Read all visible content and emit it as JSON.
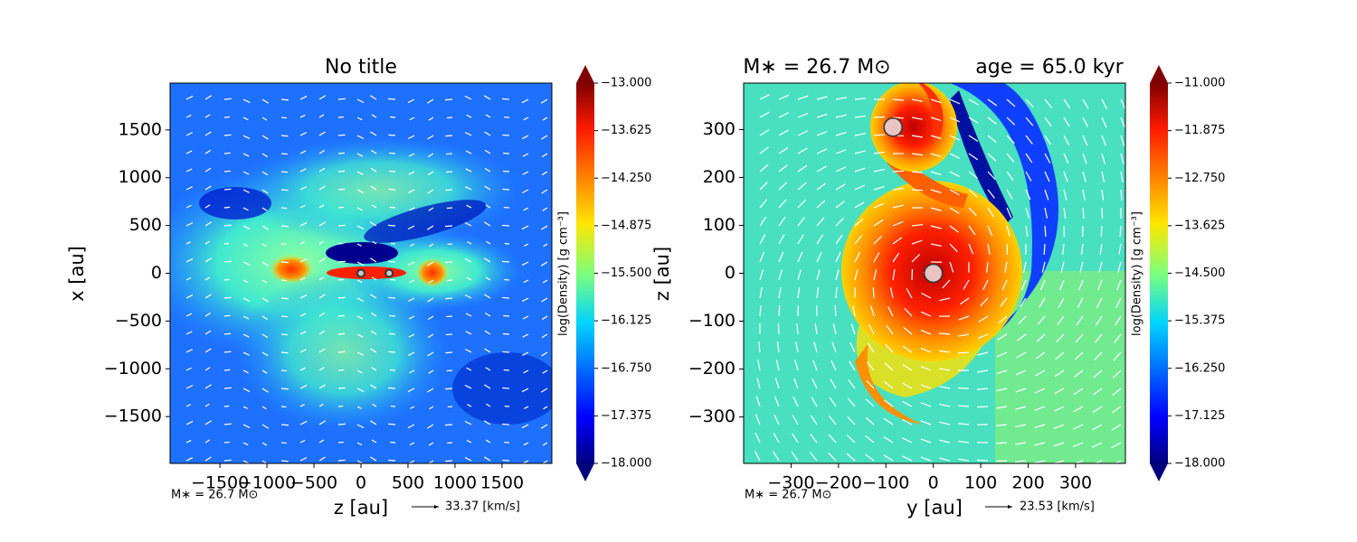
{
  "chart_data": [
    {
      "type": "contour",
      "title": "No title",
      "xlabel": "z [au]",
      "ylabel": "x [au]",
      "xlim": [
        -2030,
        2030
      ],
      "ylim": [
        -1990,
        1990
      ],
      "xticks": [
        {
          "value": -1500,
          "label": "−1500"
        },
        {
          "value": -1000,
          "label": "−1000"
        },
        {
          "value": -500,
          "label": "−500"
        },
        0,
        500,
        1000,
        1500
      ],
      "yticks": [
        {
          "value": -1500,
          "label": "−1500"
        },
        {
          "value": -1000,
          "label": "−1000"
        },
        {
          "value": -500,
          "label": "−500"
        },
        0,
        500,
        1000,
        1500
      ],
      "colorbar_label": "log(Density) [g cm⁻³]",
      "colorbar_lim": [
        -18,
        -13
      ],
      "colorbar_ticks": [
        {
          "value": -13,
          "label": "−13.000"
        },
        {
          "value": -13.625,
          "label": "−13.625"
        },
        {
          "value": -14.25,
          "label": "−14.250"
        },
        {
          "value": -14.875,
          "label": "−14.875"
        },
        {
          "value": -15.5,
          "label": "−15.500"
        },
        {
          "value": -16.125,
          "label": "−16.125"
        },
        {
          "value": -16.75,
          "label": "−16.750"
        },
        {
          "value": -17.375,
          "label": "−17.375"
        },
        {
          "value": -18,
          "label": "−18.000"
        }
      ],
      "stars": {
        "x": [
          0,
          300
        ],
        "y": [
          0,
          0
        ]
      },
      "mass_note": "M∗ = 26.7 M⊙",
      "velocity_key": "33.37 [km/s]"
    },
    {
      "type": "contour",
      "title": "M∗ = 26.7 M⊙",
      "title_right": "age = 65.0 kyr",
      "xlabel": "y [au]",
      "ylabel": "z [au]",
      "xlim": [
        -400,
        405
      ],
      "ylim": [
        -397,
        397
      ],
      "xticks": [
        {
          "value": -300,
          "label": "−300"
        },
        {
          "value": -200,
          "label": "−200"
        },
        {
          "value": -100,
          "label": "−100"
        },
        0,
        100,
        200,
        300
      ],
      "yticks": [
        {
          "value": -300,
          "label": "−300"
        },
        {
          "value": -200,
          "label": "−200"
        },
        {
          "value": -100,
          "label": "−100"
        },
        0,
        100,
        200,
        300
      ],
      "colorbar_label": "log(Density) [g cm⁻³]",
      "colorbar_lim": [
        -18,
        -11
      ],
      "colorbar_ticks": [
        {
          "value": -11,
          "label": "−11.000"
        },
        {
          "value": -11.875,
          "label": "−11.875"
        },
        {
          "value": -12.75,
          "label": "−12.750"
        },
        {
          "value": -13.625,
          "label": "−13.625"
        },
        {
          "value": -14.5,
          "label": "−14.500"
        },
        {
          "value": -15.375,
          "label": "−15.375"
        },
        {
          "value": -16.25,
          "label": "−16.250"
        },
        {
          "value": -17.125,
          "label": "−17.125"
        },
        {
          "value": -18,
          "label": "−18.000"
        }
      ],
      "stars": {
        "x": [
          -85,
          0
        ],
        "y": [
          305,
          0
        ]
      },
      "mass_note": "M∗ = 26.7 M⊙",
      "velocity_key": "23.53 [km/s]"
    }
  ]
}
